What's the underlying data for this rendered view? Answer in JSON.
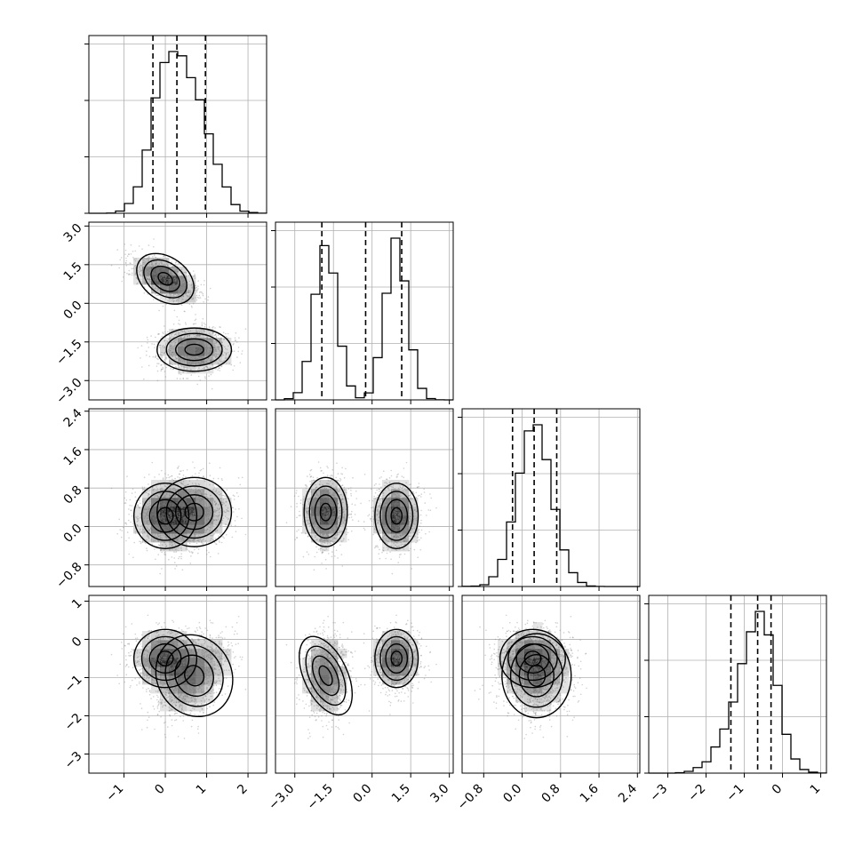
{
  "chart_data": {
    "type": "corner",
    "dimensions": [
      {
        "name": "",
        "range": [
          -1.85,
          2.45
        ],
        "ticks": [
          -1,
          0,
          1,
          2
        ],
        "tick_labels": [
          "−1",
          "0",
          "1",
          "2"
        ],
        "quantiles": [
          -0.3,
          0.28,
          0.97
        ],
        "components": [
          {
            "w": 0.5,
            "mu": 0.0,
            "sd": 0.38
          },
          {
            "w": 0.5,
            "mu": 0.7,
            "sd": 0.45
          }
        ]
      },
      {
        "name": "",
        "range": [
          -3.75,
          3.15
        ],
        "ticks": [
          -3.0,
          -1.5,
          0.0,
          1.5,
          3.0
        ],
        "tick_labels": [
          "−3.0",
          "−1.5",
          "0.0",
          "1.5",
          "3.0"
        ],
        "quantiles": [
          -1.95,
          -0.25,
          1.15
        ],
        "components": [
          {
            "w": 0.5,
            "mu": 0.95,
            "sd": 0.42
          },
          {
            "w": 0.5,
            "mu": -1.8,
            "sd": 0.42
          }
        ]
      },
      {
        "name": "",
        "range": [
          -1.25,
          2.45
        ],
        "ticks": [
          -0.8,
          0.0,
          0.8,
          1.6,
          2.4
        ],
        "tick_labels": [
          "−0.8",
          "0.0",
          "0.8",
          "1.6",
          "2.4"
        ],
        "quantiles": [
          -0.2,
          0.25,
          0.72
        ],
        "components": [
          {
            "w": 0.5,
            "mu": 0.22,
            "sd": 0.34
          },
          {
            "w": 0.5,
            "mu": 0.3,
            "sd": 0.36
          }
        ]
      },
      {
        "name": "",
        "range": [
          -3.5,
          1.15
        ],
        "ticks": [
          -3,
          -2,
          -1,
          0,
          1
        ],
        "tick_labels": [
          "−3",
          "−2",
          "−1",
          "0",
          "1"
        ],
        "quantiles": [
          -1.35,
          -0.65,
          -0.3
        ],
        "components": [
          {
            "w": 0.5,
            "mu": -0.5,
            "sd": 0.38
          },
          {
            "w": 0.5,
            "mu": -0.95,
            "sd": 0.55
          }
        ]
      }
    ],
    "xlabel": "",
    "ylabel": "",
    "grid": true,
    "diagonal": "histogram",
    "off_diagonal": "density_contours"
  }
}
